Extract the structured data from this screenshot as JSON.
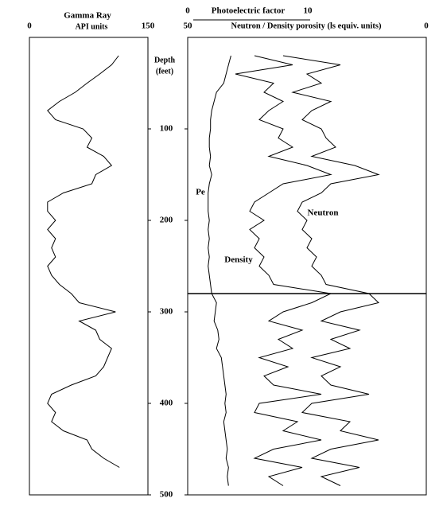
{
  "chart_data": {
    "type": "well-log",
    "depth_label": "Depth",
    "depth_unit": "(feet)",
    "x": [
      20,
      30,
      40,
      50,
      60,
      70,
      80,
      90,
      100,
      110,
      120,
      130,
      140,
      150,
      160,
      170,
      180,
      190,
      200,
      210,
      220,
      230,
      240,
      250,
      260,
      270,
      280,
      290,
      300,
      310,
      320,
      330,
      340,
      350,
      360,
      370,
      380,
      390,
      400,
      410,
      420,
      430,
      440,
      450,
      460,
      470,
      480,
      490
    ],
    "ylim": [
      0,
      500
    ],
    "yticks": [
      100,
      200,
      300,
      400,
      500
    ],
    "tracks": [
      {
        "title": "Gamma Ray",
        "axis_label": "API units",
        "xlim": [
          0,
          150
        ],
        "xticks": [
          0,
          150
        ]
      },
      {
        "axis_label": "Photoelectric factor",
        "xlim": [
          0,
          10
        ],
        "xticks": [
          0,
          10
        ]
      },
      {
        "axis_label": "Neutron / Density porosity  (ls equiv. units)",
        "xlim": [
          50,
          0
        ],
        "xticks": [
          50,
          0
        ]
      }
    ],
    "series": [
      {
        "track": 0,
        "color": "#000000",
        "values": [
          113,
          104,
          89,
          73,
          58,
          38,
          23,
          33,
          68,
          79,
          73,
          94,
          104,
          84,
          79,
          43,
          23,
          23,
          33,
          23,
          33,
          28,
          33,
          23,
          28,
          38,
          53,
          63,
          109,
          63,
          84,
          89,
          104,
          99,
          94,
          84,
          53,
          28,
          23,
          33,
          28,
          43,
          73,
          79,
          94,
          114,
          null,
          null
        ]
      },
      {
        "name": "Pe",
        "track": 1,
        "color": "#000000",
        "values": [
          3.6,
          3.4,
          3.2,
          3.0,
          2.4,
          2.2,
          2.0,
          1.9,
          1.9,
          1.8,
          1.8,
          1.9,
          1.8,
          2.0,
          1.8,
          1.7,
          1.7,
          1.7,
          1.8,
          1.7,
          1.8,
          1.7,
          1.8,
          1.7,
          1.8,
          1.9,
          2.0,
          2.4,
          2.3,
          2.2,
          2.5,
          2.6,
          2.4,
          2.8,
          2.9,
          3.0,
          3.1,
          3.2,
          3.1,
          3.2,
          3.0,
          3.1,
          3.2,
          3.3,
          3.2,
          3.4,
          3.3,
          3.4
        ]
      },
      {
        "name": "Neutron",
        "track": 2,
        "color": "#000000",
        "values": [
          30,
          18,
          25,
          22,
          28,
          20,
          24,
          26,
          22,
          21,
          19,
          24,
          15,
          10,
          20,
          22,
          26,
          27,
          25,
          26,
          24,
          25,
          23,
          24,
          22,
          21,
          12,
          10,
          18,
          22,
          14,
          20,
          16,
          24,
          18,
          22,
          20,
          12,
          24,
          26,
          16,
          18,
          10,
          20,
          24,
          14,
          22,
          18
        ]
      },
      {
        "name": "Density",
        "track": 2,
        "color": "#000000",
        "values": [
          36,
          28,
          40,
          32,
          34,
          30,
          33,
          35,
          30,
          31,
          28,
          33,
          25,
          20,
          30,
          33,
          36,
          37,
          34,
          37,
          35,
          36,
          34,
          35,
          33,
          32,
          20,
          24,
          30,
          33,
          26,
          31,
          28,
          35,
          29,
          34,
          32,
          22,
          35,
          36,
          27,
          30,
          22,
          32,
          36,
          26,
          33,
          30
        ]
      }
    ]
  }
}
